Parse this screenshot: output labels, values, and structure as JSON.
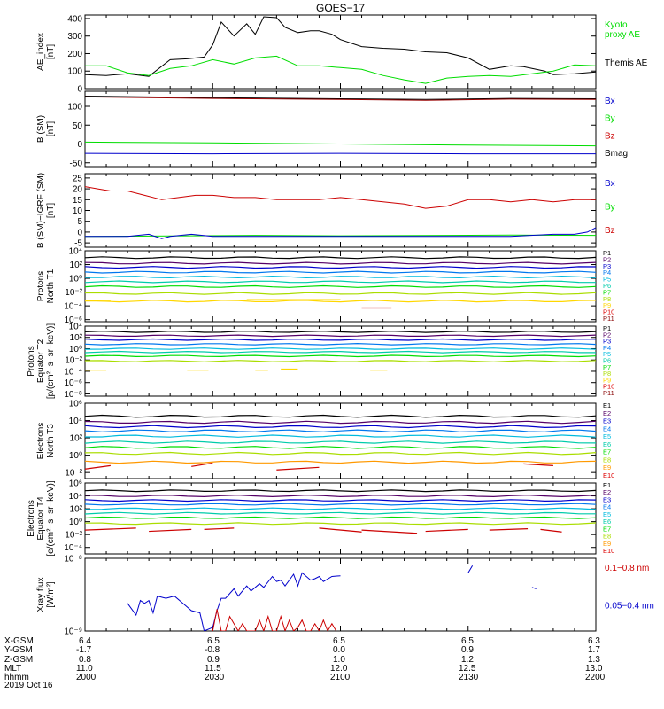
{
  "title": "GOES−17",
  "x_axis": {
    "ticks": [
      0,
      30,
      60,
      90,
      120
    ],
    "minor_per_major": 6,
    "range": [
      0,
      120
    ]
  },
  "ephemeris": {
    "labels": [
      "X-GSM",
      "Y-GSM",
      "Z-GSM",
      "MLT",
      "hhmm"
    ],
    "columns": [
      [
        "6.4",
        "-1.7",
        "0.8",
        "11.0",
        "2000"
      ],
      [
        "6.5",
        "-0.8",
        "0.9",
        "11.5",
        "2030"
      ],
      [
        "6.5",
        "0.0",
        "1.0",
        "12.0",
        "2100"
      ],
      [
        "6.5",
        "0.9",
        "1.2",
        "12.5",
        "2130"
      ],
      [
        "6.3",
        "1.7",
        "1.3",
        "13.0",
        "2200"
      ]
    ]
  },
  "date": "2019 Oct 16",
  "colors": {
    "black": "#000000",
    "blue": "#0000cc",
    "green": "#00dd00",
    "red": "#cc0000",
    "dark_red": "#990000",
    "rainbow": [
      "#000000",
      "#550066",
      "#0000cc",
      "#0077ee",
      "#00bbdd",
      "#00ccaa",
      "#00dd00",
      "#aadd00",
      "#ffd700",
      "#ff9900",
      "#dd0000",
      "#880000"
    ]
  },
  "chart_data": [
    {
      "type": "line",
      "ylabel": "AE_index\n[nT]",
      "yscale": "linear",
      "ylim": [
        0,
        420
      ],
      "yticks": [
        "0",
        "100",
        "200",
        "300",
        "400"
      ],
      "ytick_values": [
        0,
        100,
        200,
        300,
        400
      ],
      "legend": [
        {
          "text": "Kyoto\nproxy AE",
          "color": "#00dd00"
        },
        {
          "text": "Themis AE",
          "color": "#000000"
        }
      ],
      "series": [
        {
          "name": "Themis AE",
          "color": "#000000",
          "x": [
            0,
            5,
            10,
            15,
            20,
            24,
            28,
            30,
            32,
            35,
            38,
            40,
            42,
            45,
            47,
            50,
            53,
            55,
            58,
            60,
            65,
            70,
            75,
            80,
            85,
            90,
            95,
            100,
            103,
            105,
            108,
            110,
            115,
            120
          ],
          "y": [
            80,
            75,
            85,
            70,
            165,
            170,
            180,
            250,
            380,
            300,
            370,
            310,
            410,
            405,
            350,
            320,
            330,
            330,
            310,
            280,
            240,
            230,
            225,
            210,
            205,
            175,
            110,
            130,
            125,
            115,
            100,
            80,
            85,
            95
          ]
        },
        {
          "name": "Kyoto proxy AE",
          "color": "#00dd00",
          "x": [
            0,
            5,
            10,
            15,
            20,
            25,
            30,
            35,
            40,
            45,
            50,
            55,
            60,
            65,
            70,
            75,
            80,
            85,
            90,
            95,
            100,
            105,
            110,
            115,
            120
          ],
          "y": [
            130,
            130,
            90,
            75,
            115,
            130,
            165,
            140,
            175,
            185,
            130,
            130,
            120,
            110,
            75,
            50,
            30,
            60,
            70,
            75,
            70,
            85,
            100,
            135,
            130
          ]
        }
      ]
    },
    {
      "type": "line",
      "ylabel": "B (SM)\n[nT]",
      "yscale": "linear",
      "ylim": [
        -60,
        140
      ],
      "yticks": [
        "-50",
        "0",
        "50",
        "100"
      ],
      "ytick_values": [
        -50,
        0,
        50,
        100
      ],
      "legend": [
        {
          "text": "Bx",
          "color": "#0000cc"
        },
        {
          "text": "By",
          "color": "#00dd00"
        },
        {
          "text": "Bz",
          "color": "#cc0000"
        },
        {
          "text": "Bmag",
          "color": "#000000"
        }
      ],
      "series": [
        {
          "name": "Bmag",
          "color": "#000000",
          "x": [
            0,
            30,
            60,
            80,
            100,
            120
          ],
          "y": [
            127,
            123,
            120,
            118,
            121,
            120
          ]
        },
        {
          "name": "Bz",
          "color": "#990000",
          "x": [
            0,
            30,
            60,
            80,
            100,
            120
          ],
          "y": [
            125,
            121,
            118,
            116,
            119,
            118
          ]
        },
        {
          "name": "By",
          "color": "#00dd00",
          "x": [
            0,
            30,
            60,
            90,
            120
          ],
          "y": [
            5,
            3,
            0,
            -3,
            -5
          ]
        },
        {
          "name": "Bx",
          "color": "#0000cc",
          "x": [
            0,
            30,
            60,
            90,
            120
          ],
          "y": [
            -25,
            -26,
            -25,
            -26,
            -26
          ]
        }
      ]
    },
    {
      "type": "line",
      "ylabel": "B (SM)−IGRF (SM)\n[nT]",
      "yscale": "linear",
      "ylim": [
        -7,
        27
      ],
      "yticks": [
        "-5",
        "0",
        "5",
        "10",
        "15",
        "20",
        "25"
      ],
      "ytick_values": [
        -5,
        0,
        5,
        10,
        15,
        20,
        25
      ],
      "legend": [
        {
          "text": "Bx",
          "color": "#0000cc"
        },
        {
          "text": "By",
          "color": "#00dd00"
        },
        {
          "text": "Bz",
          "color": "#cc0000"
        }
      ],
      "series": [
        {
          "name": "Bz",
          "color": "#cc0000",
          "x": [
            0,
            3,
            6,
            10,
            14,
            18,
            22,
            26,
            30,
            35,
            40,
            45,
            50,
            55,
            60,
            65,
            70,
            75,
            80,
            85,
            90,
            95,
            100,
            105,
            110,
            115,
            120
          ],
          "y": [
            21,
            20,
            19,
            19,
            17,
            15,
            16,
            17,
            17,
            16,
            16,
            15,
            15,
            15,
            16,
            15,
            14,
            13,
            11,
            12,
            15,
            15,
            14,
            15,
            14,
            15,
            15
          ]
        },
        {
          "name": "By",
          "color": "#00dd00",
          "x": [
            0,
            20,
            40,
            60,
            80,
            100,
            120
          ],
          "y": [
            -2,
            -1.8,
            -1.5,
            -1.7,
            -1.6,
            -1.4,
            -1.5
          ]
        },
        {
          "name": "Bx",
          "color": "#0000cc",
          "x": [
            0,
            10,
            15,
            18,
            20,
            25,
            30,
            40,
            50,
            60,
            70,
            80,
            90,
            100,
            110,
            115,
            118,
            120
          ],
          "y": [
            -2,
            -2,
            -1,
            -3,
            -2,
            -1,
            -2,
            -2,
            -2,
            -2,
            -2,
            -2,
            -2,
            -2,
            -1,
            -1,
            0,
            2
          ]
        }
      ]
    },
    {
      "type": "line",
      "ylabel": "Protons\nNorth T1",
      "yscale": "log",
      "ylim": [
        -6.3,
        4
      ],
      "yticks": [
        "10⁴",
        "10²",
        "10⁰",
        "10⁻²",
        "10⁻⁴",
        "10⁻⁶"
      ],
      "ytick_values": [
        4,
        2,
        0,
        -2,
        -4,
        -6
      ],
      "legend": [
        {
          "text": "P1"
        },
        {
          "text": "P2"
        },
        {
          "text": "P3"
        },
        {
          "text": "P4"
        },
        {
          "text": "P5"
        },
        {
          "text": "P6"
        },
        {
          "text": "P7"
        },
        {
          "text": "P8"
        },
        {
          "text": "P9"
        },
        {
          "text": "P10"
        },
        {
          "text": "P11"
        }
      ],
      "levels": [
        3.0,
        2.2,
        1.6,
        0.9,
        0.2,
        -0.5,
        -1.2,
        -2.2,
        -3.3,
        -4.4,
        -5.5
      ],
      "level_colors": [
        "#000000",
        "#550066",
        "#0000cc",
        "#0077ee",
        "#00bbdd",
        "#00ccaa",
        "#00dd00",
        "#aadd00",
        "#ffd700",
        "#dd0000",
        "#880000"
      ],
      "drawn": 9,
      "fragments": [
        {
          "color": "#ffd700",
          "segs": [
            [
              0,
              6,
              -3.3
            ],
            [
              38,
              60,
              -3.1
            ]
          ]
        },
        {
          "color": "#cc0000",
          "segs": [
            [
              65,
              72,
              -4.3
            ]
          ]
        }
      ]
    },
    {
      "type": "line",
      "ylabel": "Protons\nEquator T2\n[p/(cm²−s−sr−keV)]",
      "yscale": "log",
      "ylim": [
        -8.4,
        4
      ],
      "yticks": [
        "10⁴",
        "10²",
        "10⁰",
        "10⁻²",
        "10⁻⁴",
        "10⁻⁶",
        "10⁻⁸"
      ],
      "ytick_values": [
        4,
        2,
        0,
        -2,
        -4,
        -6,
        -8
      ],
      "legend": [
        {
          "text": "P1"
        },
        {
          "text": "P2"
        },
        {
          "text": "P3"
        },
        {
          "text": "P4"
        },
        {
          "text": "P5"
        },
        {
          "text": "P6"
        },
        {
          "text": "P7"
        },
        {
          "text": "P8"
        },
        {
          "text": "P9"
        },
        {
          "text": "P10"
        },
        {
          "text": "P11"
        }
      ],
      "levels": [
        3.0,
        2.3,
        1.6,
        0.8,
        0.0,
        -0.6,
        -1.3,
        -2.2,
        -3.5,
        -5.0,
        -6.5
      ],
      "level_colors": [
        "#000000",
        "#550066",
        "#0000cc",
        "#0077ee",
        "#00bbdd",
        "#00ccaa",
        "#00dd00",
        "#aadd00",
        "#ffd700",
        "#dd0000",
        "#880000"
      ],
      "drawn": 8,
      "fragments": [
        {
          "color": "#ffd700",
          "segs": [
            [
              0,
              5,
              -3.8
            ],
            [
              24,
              29,
              -3.8
            ],
            [
              40,
              43,
              -3.8
            ],
            [
              46,
              50,
              -3.6
            ],
            [
              67,
              71,
              -3.8
            ]
          ]
        }
      ]
    },
    {
      "type": "line",
      "ylabel": "Electrons\nNorth T3",
      "yscale": "log",
      "ylim": [
        -2.7,
        6
      ],
      "yticks": [
        "10⁶",
        "10⁴",
        "10²",
        "10⁰",
        "10⁻²"
      ],
      "ytick_values": [
        6,
        4,
        2,
        0,
        -2
      ],
      "legend": [
        {
          "text": "E1"
        },
        {
          "text": "E2"
        },
        {
          "text": "E3"
        },
        {
          "text": "E4"
        },
        {
          "text": "E5"
        },
        {
          "text": "E6"
        },
        {
          "text": "E7"
        },
        {
          "text": "E8"
        },
        {
          "text": "E9"
        },
        {
          "text": "E10"
        }
      ],
      "levels": [
        4.5,
        3.8,
        3.3,
        2.8,
        2.2,
        1.5,
        0.9,
        0.2,
        -0.8,
        -1.8
      ],
      "level_colors": [
        "#000000",
        "#550066",
        "#0000cc",
        "#0077ee",
        "#00bbdd",
        "#00ccaa",
        "#00dd00",
        "#aadd00",
        "#ff9900",
        "#dd0000"
      ],
      "drawn": 9,
      "fragments": [
        {
          "color": "#cc0000",
          "segs": [
            [
              0,
              6,
              -1.6,
              -1.2
            ],
            [
              25,
              30,
              -1.3,
              -0.9
            ],
            [
              45,
              55,
              -1.7,
              -1.4
            ],
            [
              103,
              110,
              -1.0,
              -1.2
            ]
          ]
        }
      ]
    },
    {
      "type": "line",
      "ylabel": "Electrons\nEquator T4\n[e/(cm²−s−sr−keV)]",
      "yscale": "log",
      "ylim": [
        -5,
        6
      ],
      "yticks": [
        "10⁶",
        "10⁴",
        "10²",
        "10⁰",
        "10⁻²",
        "10⁻⁴"
      ],
      "ytick_values": [
        6,
        4,
        2,
        0,
        -2,
        -4
      ],
      "legend": [
        {
          "text": "E1"
        },
        {
          "text": "E2"
        },
        {
          "text": "E3"
        },
        {
          "text": "E4"
        },
        {
          "text": "E5"
        },
        {
          "text": "E6"
        },
        {
          "text": "E7"
        },
        {
          "text": "E8"
        },
        {
          "text": "E9"
        },
        {
          "text": "E10"
        }
      ],
      "levels": [
        4.8,
        4.0,
        3.3,
        2.7,
        2.0,
        1.3,
        0.6,
        -0.3,
        -1.3,
        -2.0
      ],
      "level_colors": [
        "#000000",
        "#550066",
        "#0000cc",
        "#0077ee",
        "#00bbdd",
        "#00ccaa",
        "#00dd00",
        "#aadd00",
        "#ff9900",
        "#dd0000"
      ],
      "drawn": 8,
      "fragments": [
        {
          "color": "#cc0000",
          "segs": [
            [
              0,
              12,
              -1.3,
              -1.0
            ],
            [
              15,
              25,
              -1.5,
              -1.2
            ],
            [
              28,
              35,
              -1.2,
              -1.0
            ],
            [
              55,
              65,
              -1.0,
              -1.6
            ],
            [
              65,
              78,
              -1.3,
              -1.8
            ],
            [
              80,
              90,
              -1.5,
              -1.2
            ],
            [
              95,
              104,
              -1.3,
              -1.1
            ],
            [
              107,
              112,
              -1.2,
              -1.6
            ]
          ]
        }
      ]
    },
    {
      "type": "line",
      "ylabel": "Xray flux\n[W/m²]",
      "yscale": "log",
      "ylim": [
        -9,
        -8
      ],
      "yticks": [
        "10⁻⁸",
        "10⁻⁹"
      ],
      "ytick_values": [
        -8,
        -9
      ],
      "legend": [
        {
          "text": "0.1−0.8 nm",
          "color": "#cc0000"
        },
        {
          "text": "0.05−0.4 nm",
          "color": "#0000cc"
        }
      ],
      "series": [
        {
          "name": "0.05−0.4 nm",
          "color": "#0000cc",
          "x": [
            10,
            12,
            13,
            14,
            15,
            16,
            17,
            19,
            21,
            23,
            25,
            27,
            28,
            30,
            31,
            32,
            33,
            35,
            36,
            38,
            39,
            41,
            42,
            44,
            45,
            46,
            47,
            49,
            50,
            51,
            53,
            54,
            55,
            56,
            58,
            60
          ],
          "y": [
            -8.62,
            -8.78,
            -8.58,
            -8.62,
            -8.58,
            -8.75,
            -8.52,
            -8.55,
            -8.52,
            -8.62,
            -8.72,
            -8.75,
            -9.0,
            -8.95,
            -8.72,
            -8.55,
            -8.55,
            -8.42,
            -8.52,
            -8.38,
            -8.45,
            -8.35,
            -8.4,
            -8.25,
            -8.32,
            -8.3,
            -8.38,
            -8.22,
            -8.38,
            -8.2,
            -8.3,
            -8.28,
            -8.25,
            -8.32,
            -8.25,
            -8.24
          ]
        },
        {
          "name": "0.05−0.4 nm",
          "color": "#0000cc",
          "x": [
            90,
            91
          ],
          "y": [
            -8.2,
            -8.1
          ]
        },
        {
          "name": "0.05−0.4 nm",
          "color": "#0000cc",
          "x": [
            105,
            106
          ],
          "y": [
            -8.4,
            -8.42
          ]
        },
        {
          "name": "0.1−0.8 nm",
          "color": "#cc0000",
          "x": [
            30,
            31,
            32,
            33,
            34,
            36,
            37,
            38,
            40,
            41,
            42,
            43,
            44,
            45,
            46,
            47,
            48,
            49,
            50,
            51,
            52,
            53,
            54,
            55,
            56,
            57,
            58,
            59
          ],
          "y": [
            -9.0,
            -8.7,
            -9.0,
            -9.0,
            -8.8,
            -9.0,
            -8.9,
            -9.0,
            -9.0,
            -8.85,
            -9.0,
            -8.8,
            -9.0,
            -9.0,
            -8.8,
            -9.0,
            -8.85,
            -9.0,
            -8.95,
            -8.85,
            -9.0,
            -9.0,
            -8.9,
            -9.0,
            -8.85,
            -9.0,
            -8.9,
            -9.0
          ]
        }
      ]
    }
  ]
}
